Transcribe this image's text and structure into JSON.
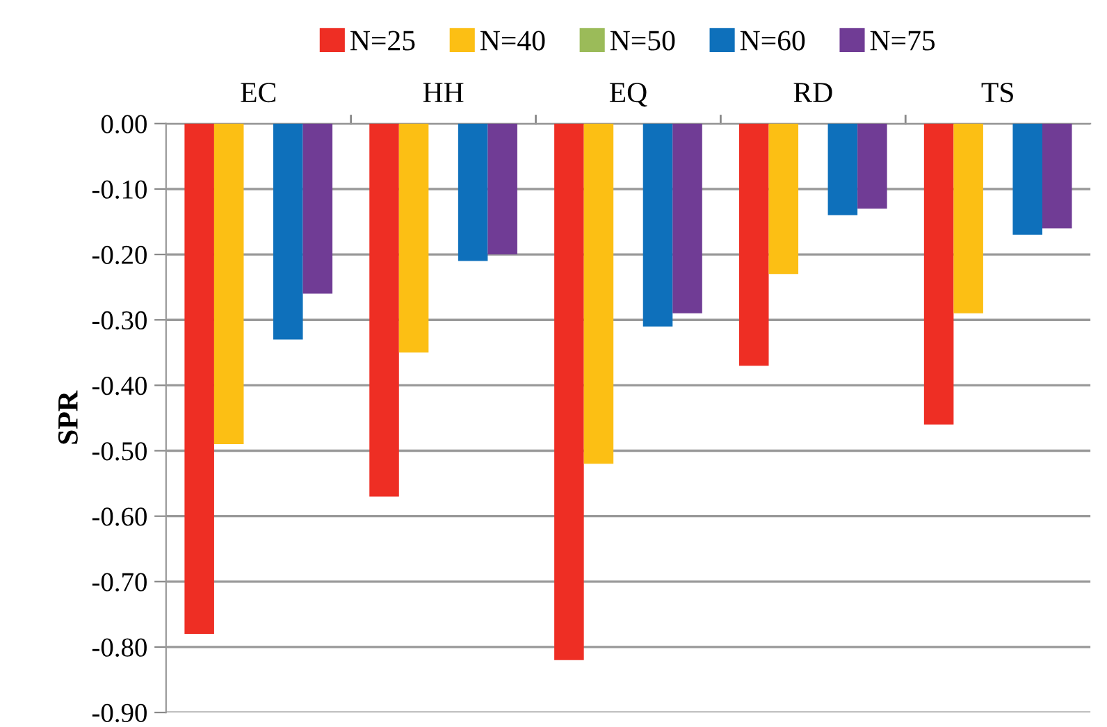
{
  "chart_data": {
    "type": "bar",
    "ylabel": "SPR",
    "categories": [
      "EC",
      "HH",
      "EQ",
      "RD",
      "TS"
    ],
    "series": [
      {
        "name": "N=25",
        "color": "#ee2e24",
        "values": [
          -0.78,
          -0.57,
          -0.82,
          -0.37,
          -0.46
        ]
      },
      {
        "name": "N=40",
        "color": "#fcbf14",
        "values": [
          -0.49,
          -0.35,
          -0.52,
          -0.23,
          -0.29
        ]
      },
      {
        "name": "N=50",
        "color": "#9bbb59",
        "values": [
          null,
          null,
          null,
          null,
          null
        ]
      },
      {
        "name": "N=60",
        "color": "#0e70bb",
        "values": [
          -0.33,
          -0.21,
          -0.31,
          -0.14,
          -0.17
        ]
      },
      {
        "name": "N=75",
        "color": "#703c95",
        "values": [
          -0.26,
          -0.2,
          -0.29,
          -0.13,
          -0.16
        ]
      }
    ],
    "ylim": [
      -0.9,
      0
    ],
    "yticks": [
      {
        "value": 0,
        "label": "0.00"
      },
      {
        "value": -0.1,
        "label": "-0.10"
      },
      {
        "value": -0.2,
        "label": "-0.20"
      },
      {
        "value": -0.3,
        "label": "-0.30"
      },
      {
        "value": -0.4,
        "label": "-0.40"
      },
      {
        "value": -0.5,
        "label": "-0.50"
      },
      {
        "value": -0.6,
        "label": "-0.60"
      },
      {
        "value": -0.7,
        "label": "-0.70"
      },
      {
        "value": -0.8,
        "label": "-0.80"
      },
      {
        "value": -0.9,
        "label": "-0.90"
      }
    ],
    "grid": "y",
    "legend": "top"
  }
}
